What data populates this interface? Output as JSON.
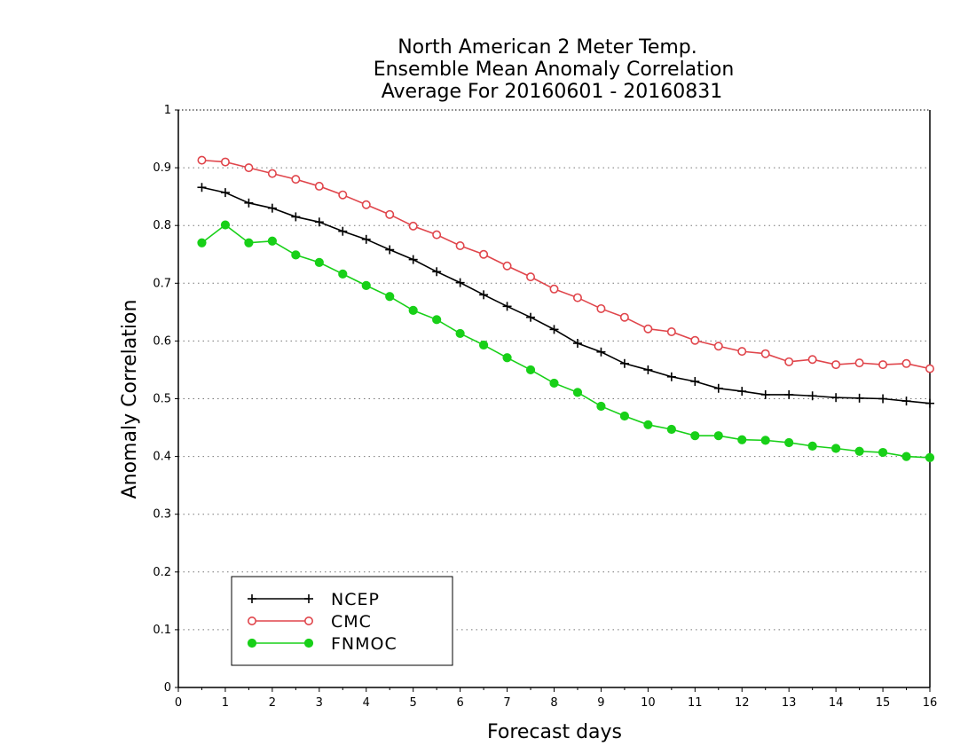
{
  "chart_data": {
    "type": "line",
    "title": [
      "North American 2 Meter Temp.",
      "Ensemble Mean Anomaly Correlation",
      "Average For 20160601 - 20160831"
    ],
    "xlabel": "Forecast days",
    "ylabel": "Anomaly Correlation",
    "xlim": [
      0,
      16
    ],
    "ylim": [
      0,
      1
    ],
    "xticks": [
      0,
      1,
      2,
      3,
      4,
      5,
      6,
      7,
      8,
      9,
      10,
      11,
      12,
      13,
      14,
      15,
      16
    ],
    "yticks": [
      0,
      0.1,
      0.2,
      0.3,
      0.4,
      0.5,
      0.6,
      0.7,
      0.8,
      0.9,
      1
    ],
    "xtick_labels": [
      "0",
      "1",
      "2",
      "3",
      "4",
      "5",
      "6",
      "7",
      "8",
      "9",
      "10",
      "11",
      "12",
      "13",
      "14",
      "15",
      "16"
    ],
    "ytick_labels": [
      "0",
      "0.1",
      "0.2",
      "0.3",
      "0.4",
      "0.5",
      "0.6",
      "0.7",
      "0.8",
      "0.9",
      "1"
    ],
    "grid": "horizontal dotted",
    "legend_position": "bottom-left",
    "x": [
      0.5,
      1,
      1.5,
      2,
      2.5,
      3,
      3.5,
      4,
      4.5,
      5,
      5.5,
      6,
      6.5,
      7,
      7.5,
      8,
      8.5,
      9,
      9.5,
      10,
      10.5,
      11,
      11.5,
      12,
      12.5,
      13,
      13.5,
      14,
      14.5,
      15,
      15.5,
      16
    ],
    "series": [
      {
        "name": "NCEP",
        "color": "#000000",
        "marker": "plus",
        "values": [
          0.866,
          0.857,
          0.839,
          0.83,
          0.815,
          0.806,
          0.79,
          0.776,
          0.758,
          0.741,
          0.72,
          0.701,
          0.68,
          0.66,
          0.641,
          0.62,
          0.596,
          0.581,
          0.561,
          0.55,
          0.538,
          0.53,
          0.518,
          0.513,
          0.507,
          0.507,
          0.505,
          0.502,
          0.501,
          0.5,
          0.496,
          0.492
        ]
      },
      {
        "name": "CMC",
        "color": "#e0454b",
        "marker": "open-circle",
        "values": [
          0.913,
          0.91,
          0.9,
          0.89,
          0.88,
          0.868,
          0.853,
          0.836,
          0.819,
          0.799,
          0.784,
          0.765,
          0.75,
          0.73,
          0.711,
          0.69,
          0.675,
          0.656,
          0.641,
          0.621,
          0.616,
          0.601,
          0.591,
          0.582,
          0.578,
          0.564,
          0.568,
          0.559,
          0.562,
          0.559,
          0.561,
          0.552
        ]
      },
      {
        "name": "FNMOC",
        "color": "#18d018",
        "marker": "filled-circle",
        "values": [
          0.77,
          0.801,
          0.77,
          0.773,
          0.749,
          0.736,
          0.716,
          0.696,
          0.677,
          0.653,
          0.637,
          0.613,
          0.593,
          0.571,
          0.55,
          0.527,
          0.511,
          0.487,
          0.47,
          0.455,
          0.447,
          0.436,
          0.436,
          0.429,
          0.428,
          0.424,
          0.418,
          0.414,
          0.409,
          0.407,
          0.4,
          0.398
        ]
      }
    ]
  }
}
